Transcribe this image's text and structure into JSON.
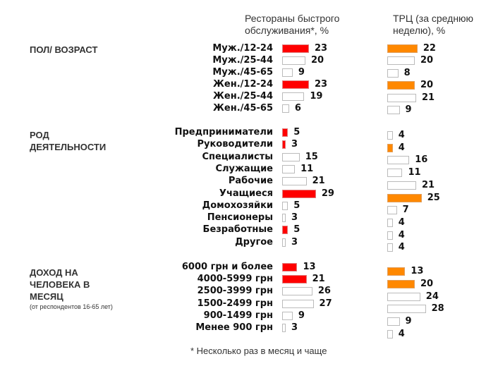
{
  "chart_data": {
    "type": "bar",
    "orientation": "horizontal",
    "colors": {
      "fast_food_highlight": "#ff0000",
      "mall_highlight": "#ff8800",
      "default_fill": "#ffffff",
      "border": "#bbbbbb"
    },
    "column_titles": [
      "Рестораны быстрого обслуживания*, %",
      "ТРЦ (за среднюю неделю), %"
    ],
    "footnote": "* Несколько раз в месяц и чаще",
    "groups": [
      {
        "title": "ПОЛ/ ВОЗРАСТ",
        "subtitle": "",
        "categories": [
          "Муж./12-24",
          "Муж./25-44",
          "Муж./45-65",
          "Жен./12-24",
          "Жен./25-44",
          "Жен./45-65"
        ],
        "fast_food": [
          23,
          20,
          9,
          23,
          19,
          6
        ],
        "fast_food_highlight": [
          true,
          false,
          false,
          true,
          false,
          false
        ],
        "mall": [
          22,
          20,
          8,
          20,
          21,
          9
        ],
        "mall_highlight": [
          true,
          false,
          false,
          true,
          false,
          false
        ]
      },
      {
        "title": "РОД ДЕЯТЕЛЬНОСТИ",
        "subtitle": "",
        "categories": [
          "Предприниматели",
          "Руководители",
          "Специалисты",
          "Служащие",
          "Рабочие",
          "Учащиеся",
          "Домохозяйки",
          "Пенсионеры",
          "Безработные",
          "Другое"
        ],
        "fast_food": [
          5,
          3,
          15,
          11,
          21,
          29,
          5,
          3,
          5,
          3
        ],
        "fast_food_highlight": [
          true,
          true,
          false,
          false,
          false,
          true,
          false,
          false,
          true,
          false
        ],
        "mall": [
          4,
          4,
          16,
          11,
          21,
          25,
          7,
          4,
          4,
          4
        ],
        "mall_highlight": [
          false,
          true,
          false,
          false,
          false,
          true,
          false,
          false,
          false,
          false
        ]
      },
      {
        "title": "ДОХОД НА ЧЕЛОВЕКА В МЕСЯЦ",
        "subtitle": "(от респондентов 16-65 лет)",
        "categories": [
          "6000 грн и более",
          "4000-5999 грн",
          "2500-3999 грн",
          "1500-2499 грн",
          "900-1499 грн",
          "Менее 900 грн"
        ],
        "fast_food": [
          13,
          21,
          26,
          27,
          9,
          3
        ],
        "fast_food_highlight": [
          true,
          true,
          false,
          false,
          false,
          false
        ],
        "mall": [
          13,
          20,
          24,
          28,
          9,
          4
        ],
        "mall_highlight": [
          true,
          true,
          false,
          false,
          false,
          false
        ]
      }
    ]
  }
}
